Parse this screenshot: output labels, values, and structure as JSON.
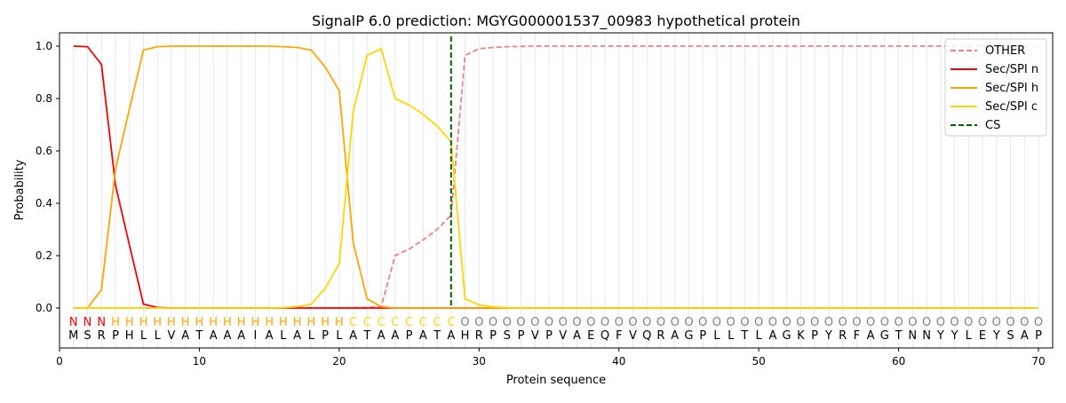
{
  "chart_data": {
    "type": "line",
    "title": "SignalP 6.0 prediction: MGYG000001537_00983 hypothetical protein",
    "xlabel": "Protein sequence",
    "ylabel": "Probability",
    "xlim": [
      0,
      71
    ],
    "ylim": [
      -0.15,
      1.05
    ],
    "xticks": [
      0,
      10,
      20,
      30,
      40,
      50,
      60,
      70
    ],
    "yticks": [
      "0.0",
      "0.2",
      "0.4",
      "0.6",
      "0.8",
      "1.0"
    ],
    "legend_position": "top-right",
    "sequence": "MSRPHLLVATAAAIALALPLATAAPATAHRPSPVPVAEQFVQRAGPLLTLAGKPYRFAGTNNYYLEYSAP",
    "labels": "NNNHHHHHHHHHHHHHHHHHCCCCCCCCOOOOOOOOOOOOOOOOOOOOOOOOOOOOOOOOOOOOOOOOOO",
    "label_colors": {
      "N": "#ff0000",
      "H": "#ffa500",
      "C": "#ffd700",
      "O": "#808080"
    },
    "cleavage_site": 28,
    "series": [
      {
        "name": "OTHER",
        "color": "#f08080",
        "dash": true,
        "values": [
          0,
          0,
          0,
          0,
          0,
          0,
          0,
          0,
          0,
          0,
          0,
          0,
          0,
          0,
          0,
          0,
          0,
          0,
          0,
          0,
          0.001,
          0.002,
          0.005,
          0.2,
          0.225,
          0.26,
          0.3,
          0.355,
          0.965,
          0.99,
          0.995,
          0.998,
          0.999,
          1,
          1,
          1,
          1,
          1,
          1,
          1,
          1,
          1,
          1,
          1,
          1,
          1,
          1,
          1,
          1,
          1,
          1,
          1,
          1,
          1,
          1,
          1,
          1,
          1,
          1,
          1,
          1,
          1,
          1,
          1,
          1,
          1,
          1,
          1,
          1,
          1
        ]
      },
      {
        "name": "Sec/SPI n",
        "color": "#ff0000",
        "values": [
          1,
          0.998,
          0.93,
          0.47,
          0.24,
          0.015,
          0.002,
          0,
          0,
          0,
          0,
          0,
          0,
          0,
          0,
          0,
          0,
          0,
          0,
          0,
          0,
          0,
          0,
          0,
          0,
          0,
          0,
          0,
          0,
          0,
          0,
          0,
          0,
          0,
          0,
          0,
          0,
          0,
          0,
          0,
          0,
          0,
          0,
          0,
          0,
          0,
          0,
          0,
          0,
          0,
          0,
          0,
          0,
          0,
          0,
          0,
          0,
          0,
          0,
          0,
          0,
          0,
          0,
          0,
          0,
          0,
          0,
          0,
          0,
          0
        ]
      },
      {
        "name": "Sec/SPI h",
        "color": "#ffa500",
        "values": [
          0,
          0,
          0.07,
          0.53,
          0.76,
          0.985,
          0.998,
          1,
          1,
          1,
          1,
          1,
          1,
          1,
          1,
          0.998,
          0.995,
          0.985,
          0.92,
          0.83,
          0.25,
          0.035,
          0.005,
          0,
          0,
          0,
          0,
          0,
          0,
          0,
          0,
          0,
          0,
          0,
          0,
          0,
          0,
          0,
          0,
          0,
          0,
          0,
          0,
          0,
          0,
          0,
          0,
          0,
          0,
          0,
          0,
          0,
          0,
          0,
          0,
          0,
          0,
          0,
          0,
          0,
          0,
          0,
          0,
          0,
          0,
          0,
          0,
          0,
          0,
          0
        ]
      },
      {
        "name": "Sec/SPI c",
        "color": "#ffd700",
        "values": [
          0,
          0,
          0,
          0,
          0,
          0,
          0,
          0,
          0,
          0,
          0,
          0,
          0,
          0,
          0,
          0.001,
          0.005,
          0.015,
          0.075,
          0.17,
          0.75,
          0.965,
          0.99,
          0.8,
          0.775,
          0.74,
          0.695,
          0.635,
          0.035,
          0.012,
          0.004,
          0.001,
          0,
          0,
          0,
          0,
          0,
          0,
          0,
          0,
          0,
          0,
          0,
          0,
          0,
          0,
          0,
          0,
          0,
          0,
          0,
          0,
          0,
          0,
          0,
          0,
          0,
          0,
          0,
          0,
          0,
          0,
          0,
          0,
          0,
          0,
          0,
          0,
          0,
          0
        ]
      },
      {
        "name": "CS",
        "color": "#006400",
        "dash": true,
        "vertical_at": 28
      }
    ]
  }
}
